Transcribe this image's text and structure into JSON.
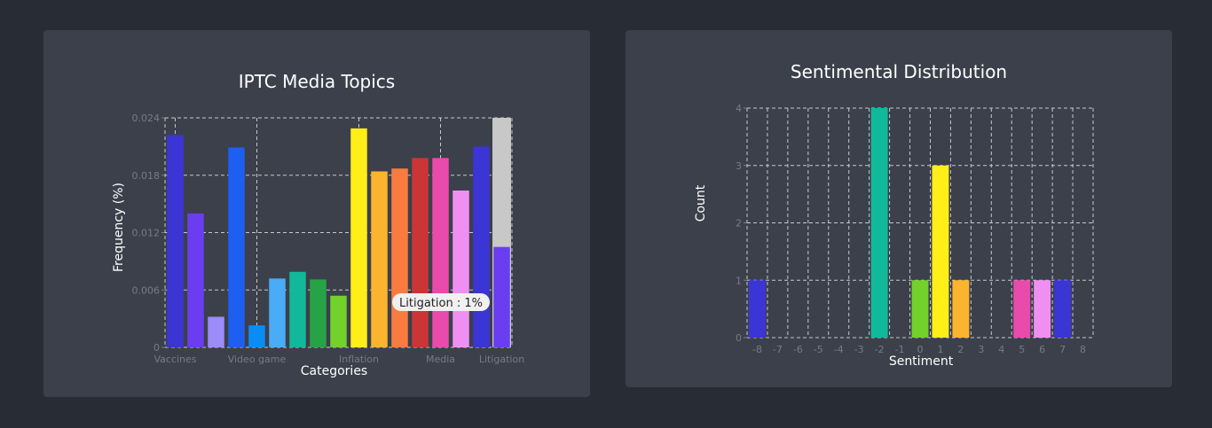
{
  "chart_data": [
    {
      "type": "bar",
      "title": "IPTC Media Topics",
      "xlabel": "Categories",
      "ylabel": "Frequency (%)",
      "ylim": [
        0,
        0.024
      ],
      "yticks": [
        "0",
        "0.006",
        "0.012",
        "0.018",
        "0.024"
      ],
      "xtick_labels": [
        "Vaccines",
        "Video game",
        "Inflation",
        "Media",
        "Litigation"
      ],
      "grid": true,
      "values": [
        0.0222,
        0.014,
        0.0032,
        0.0209,
        0.0023,
        0.0072,
        0.0079,
        0.0071,
        0.0054,
        0.0229,
        0.0184,
        0.0187,
        0.0198,
        0.0198,
        0.0164,
        0.021,
        0.0105
      ],
      "colors": [
        "#3b35d6",
        "#6a3df0",
        "#9b8cfa",
        "#1e5ff2",
        "#0a8cf5",
        "#4aabf7",
        "#12b89a",
        "#27a347",
        "#72d12a",
        "#ffee17",
        "#fbb42e",
        "#f97b3f",
        "#cc3535",
        "#e84bab",
        "#f08ff2",
        "#3b35d6",
        "#6a3df0"
      ],
      "highlight": {
        "index": 16,
        "color": "#c8c8c8"
      },
      "tooltip": "Litigation : 1%"
    },
    {
      "type": "bar",
      "title": "Sentimental Distribution",
      "xlabel": "Sentiment",
      "ylabel": "Count",
      "ylim": [
        0,
        4
      ],
      "xlim": [
        -8,
        8
      ],
      "yticks": [
        "0",
        "1",
        "2",
        "3",
        "4"
      ],
      "xticks": [
        "-8",
        "-7",
        "-6",
        "-5",
        "-4",
        "-3",
        "-2",
        "-1",
        "0",
        "1",
        "2",
        "3",
        "4",
        "5",
        "6",
        "7",
        "8"
      ],
      "grid": true,
      "points": [
        {
          "x": -8,
          "y": 1,
          "color": "#3b35d6"
        },
        {
          "x": -2,
          "y": 4,
          "color": "#12b89a"
        },
        {
          "x": 0,
          "y": 1,
          "color": "#72d12a"
        },
        {
          "x": 1,
          "y": 3,
          "color": "#ffee17"
        },
        {
          "x": 2,
          "y": 1,
          "color": "#fbb42e"
        },
        {
          "x": 5,
          "y": 1,
          "color": "#e84bab"
        },
        {
          "x": 6,
          "y": 1,
          "color": "#f08ff2"
        },
        {
          "x": 7,
          "y": 1,
          "color": "#3b35d6"
        }
      ]
    }
  ]
}
